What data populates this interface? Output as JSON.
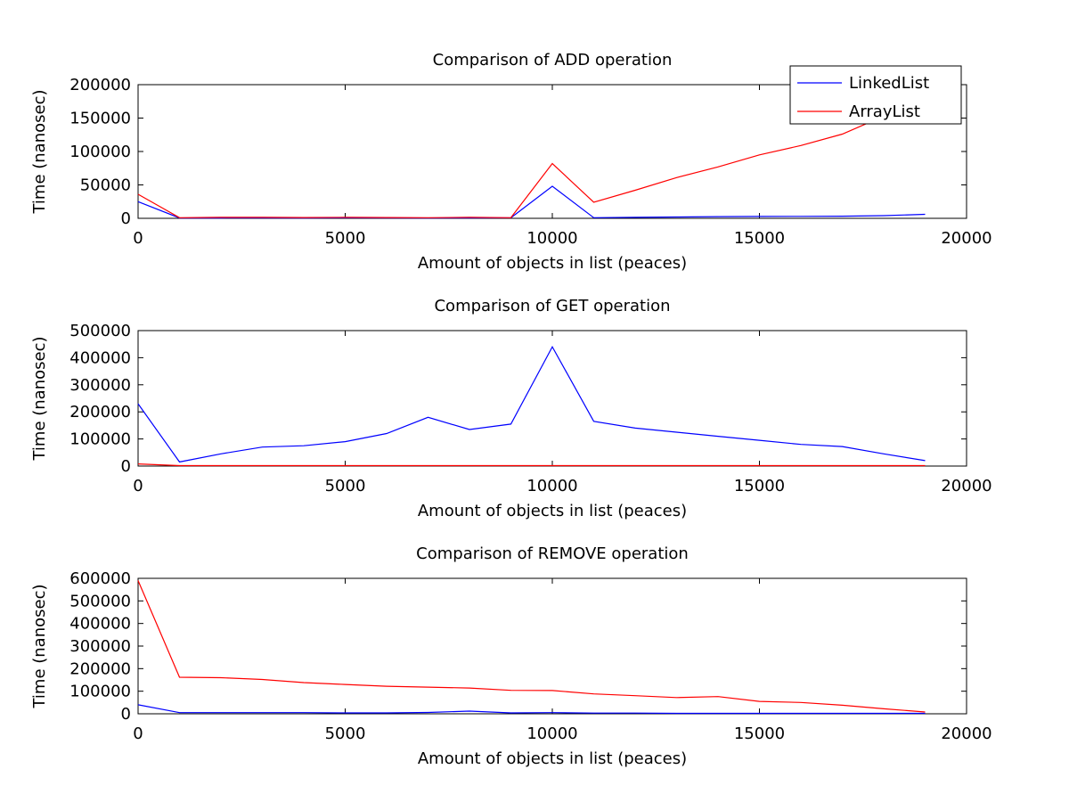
{
  "chart_data": [
    {
      "type": "line",
      "title": "Comparison of ADD operation",
      "xlabel": "Amount of objects in list (peaces)",
      "ylabel": "Time (nanosec)",
      "xlim": [
        0,
        20000
      ],
      "ylim": [
        0,
        200000
      ],
      "xticks": [
        "0",
        "5000",
        "10000",
        "15000",
        "20000"
      ],
      "yticks": [
        "0",
        "50000",
        "100000",
        "150000",
        "200000"
      ],
      "legend": "top-right",
      "x": [
        0,
        1000,
        2000,
        3000,
        4000,
        5000,
        6000,
        7000,
        8000,
        9000,
        10000,
        11000,
        12000,
        13000,
        14000,
        15000,
        16000,
        17000,
        18000,
        19000
      ],
      "series": [
        {
          "name": "LinkedList",
          "color": "#0000ff",
          "values": [
            25000,
            500,
            600,
            700,
            600,
            800,
            700,
            600,
            700,
            800,
            48000,
            1000,
            1500,
            2000,
            2500,
            2800,
            3000,
            3200,
            4000,
            6000
          ]
        },
        {
          "name": "ArrayList",
          "color": "#ff0000",
          "values": [
            36000,
            1000,
            1500,
            1500,
            1200,
            1500,
            1200,
            1000,
            1500,
            1000,
            82000,
            24000,
            42000,
            61000,
            77000,
            95000,
            109000,
            126000,
            153000,
            173000
          ]
        }
      ]
    },
    {
      "type": "line",
      "title": "Comparison of GET operation",
      "xlabel": "Amount of objects in list (peaces)",
      "ylabel": "Time (nanosec)",
      "xlim": [
        0,
        20000
      ],
      "ylim": [
        0,
        500000
      ],
      "xticks": [
        "0",
        "5000",
        "10000",
        "15000",
        "20000"
      ],
      "yticks": [
        "0",
        "100000",
        "200000",
        "300000",
        "400000",
        "500000"
      ],
      "x": [
        0,
        1000,
        2000,
        3000,
        4000,
        5000,
        6000,
        7000,
        8000,
        9000,
        10000,
        11000,
        12000,
        13000,
        14000,
        15000,
        16000,
        17000,
        18000,
        19000
      ],
      "series": [
        {
          "color": "#0000ff",
          "values": [
            230000,
            15000,
            45000,
            70000,
            75000,
            90000,
            120000,
            180000,
            135000,
            155000,
            440000,
            165000,
            140000,
            125000,
            110000,
            95000,
            80000,
            72000,
            45000,
            20000
          ]
        },
        {
          "color": "#ff0000",
          "values": [
            8000,
            1500,
            1500,
            1500,
            1500,
            1500,
            1500,
            1500,
            1500,
            1500,
            1500,
            1500,
            1500,
            1500,
            1500,
            1500,
            1500,
            1500,
            1500,
            1500
          ]
        }
      ]
    },
    {
      "type": "line",
      "title": "Comparison of REMOVE operation",
      "xlabel": "Amount of objects in list (peaces)",
      "ylabel": "Time (nanosec)",
      "xlim": [
        0,
        20000
      ],
      "ylim": [
        0,
        600000
      ],
      "xticks": [
        "0",
        "5000",
        "10000",
        "15000",
        "20000"
      ],
      "yticks": [
        "0",
        "100000",
        "200000",
        "300000",
        "400000",
        "500000",
        "600000"
      ],
      "x": [
        0,
        1000,
        2000,
        3000,
        4000,
        5000,
        6000,
        7000,
        8000,
        9000,
        10000,
        11000,
        12000,
        13000,
        14000,
        15000,
        16000,
        17000,
        18000,
        19000
      ],
      "series": [
        {
          "color": "#0000ff",
          "values": [
            40000,
            5000,
            5000,
            5000,
            5000,
            4000,
            4000,
            6000,
            12000,
            4000,
            5000,
            3000,
            3000,
            2000,
            2000,
            2000,
            2000,
            2000,
            2000,
            2000
          ]
        },
        {
          "color": "#ff0000",
          "values": [
            590000,
            162000,
            160000,
            152000,
            138000,
            130000,
            122000,
            118000,
            114000,
            104000,
            103000,
            88000,
            80000,
            72000,
            76000,
            55000,
            50000,
            38000,
            22000,
            8000
          ]
        }
      ]
    }
  ]
}
